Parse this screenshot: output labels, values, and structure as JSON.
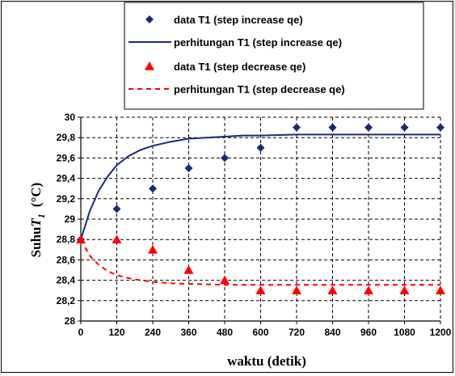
{
  "chart_data": {
    "type": "scatter",
    "xlabel": "waktu (detik)",
    "ylabel": {
      "prefix": "Suhu",
      "symbol": "T",
      "subscript": "1",
      "unit": "(°C)"
    },
    "xlim": [
      0,
      1200
    ],
    "ylim": [
      28,
      30
    ],
    "x_ticks": [
      "0",
      "120",
      "240",
      "360",
      "480",
      "600",
      "720",
      "840",
      "960",
      "1080",
      "1200"
    ],
    "y_ticks": [
      "28",
      "28,2",
      "28,4",
      "28,6",
      "28,8",
      "29",
      "29,2",
      "29,4",
      "29,6",
      "29,8",
      "30"
    ],
    "grid": true,
    "legend_position": "top",
    "series": [
      {
        "name": "data T1 (step increase qe)",
        "kind": "markers",
        "marker": "diamond",
        "color": "#1a2a7a",
        "x": [
          0,
          120,
          240,
          360,
          480,
          600,
          720,
          840,
          960,
          1080,
          1200
        ],
        "y": [
          28.8,
          29.1,
          29.3,
          29.5,
          29.6,
          29.7,
          29.9,
          29.9,
          29.9,
          29.9,
          29.9
        ]
      },
      {
        "name": "perhitungan T1 (step increase qe)",
        "kind": "line",
        "style": "solid",
        "color": "#1a2a7a",
        "x": [
          0,
          30,
          60,
          90,
          120,
          160,
          200,
          240,
          300,
          360,
          420,
          480,
          540,
          600,
          720,
          840,
          960,
          1080,
          1200
        ],
        "y": [
          28.8,
          29.08,
          29.28,
          29.42,
          29.53,
          29.62,
          29.68,
          29.72,
          29.76,
          29.79,
          29.8,
          29.81,
          29.82,
          29.82,
          29.83,
          29.83,
          29.83,
          29.83,
          29.83
        ]
      },
      {
        "name": "data T1 (step decrease qe)",
        "kind": "markers",
        "marker": "triangle",
        "color": "#ff0000",
        "x": [
          0,
          120,
          240,
          360,
          480,
          600,
          720,
          840,
          960,
          1080,
          1200
        ],
        "y": [
          28.8,
          28.8,
          28.7,
          28.5,
          28.4,
          28.3,
          28.3,
          28.3,
          28.3,
          28.3,
          28.3
        ]
      },
      {
        "name": "perhitungan T1 (step decrease qe)",
        "kind": "line",
        "style": "dashed",
        "color": "#ff0000",
        "x": [
          0,
          30,
          60,
          90,
          120,
          160,
          200,
          240,
          300,
          360,
          420,
          480,
          540,
          600,
          720,
          840,
          960,
          1080,
          1200
        ],
        "y": [
          28.8,
          28.64,
          28.55,
          28.49,
          28.45,
          28.42,
          28.4,
          28.385,
          28.37,
          28.365,
          28.36,
          28.355,
          28.355,
          28.355,
          28.355,
          28.355,
          28.355,
          28.355,
          28.355
        ]
      }
    ]
  }
}
